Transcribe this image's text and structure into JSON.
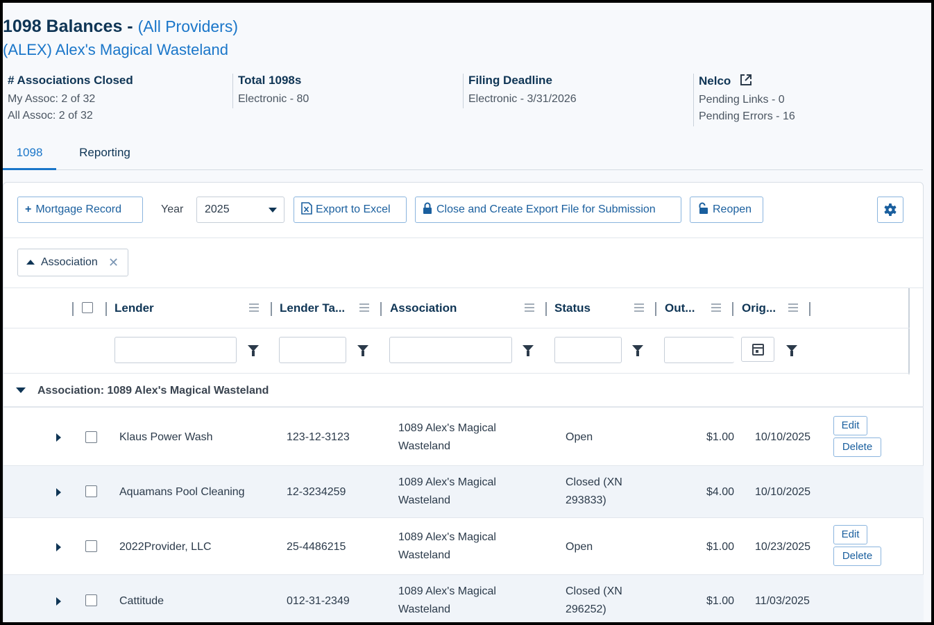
{
  "header": {
    "title": "1098 Balances -",
    "provider_link": "(All Providers)",
    "association_link": "(ALEX) Alex's Magical Wasteland"
  },
  "stats": {
    "closed": {
      "title": "# Associations Closed",
      "line1": "My Assoc: 2 of 32",
      "line2": "All Assoc: 2 of 32"
    },
    "total": {
      "title": "Total 1098s",
      "line1": "Electronic - 80"
    },
    "deadline": {
      "title": "Filing Deadline",
      "line1": "Electronic - 3/31/2026"
    },
    "nelco": {
      "title": "Nelco",
      "icon": "external-link-icon",
      "line1": "Pending Links - 0",
      "line2": "Pending Errors - 16"
    }
  },
  "tabs": [
    {
      "label": "1098",
      "active": true
    },
    {
      "label": "Reporting",
      "active": false
    }
  ],
  "toolbar": {
    "add_label": "Mortgage Record",
    "year_label": "Year",
    "year_value": "2025",
    "export_label": "Export to Excel",
    "close_label": "Close and Create Export File for Submission",
    "reopen_label": "Reopen",
    "settings_icon": "gear-icon"
  },
  "grouping": {
    "chip_label": "Association"
  },
  "columns": [
    {
      "label": "Lender"
    },
    {
      "label": "Lender Ta..."
    },
    {
      "label": "Association"
    },
    {
      "label": "Status"
    },
    {
      "label": "Out..."
    },
    {
      "label": "Orig..."
    }
  ],
  "group_header": "Association: 1089 Alex's Magical Wasteland",
  "rows": [
    {
      "lender": "Klaus Power Wash",
      "tax_id": "123-12-3123",
      "assoc_l1": "1089 Alex's Magical",
      "assoc_l2": "Wasteland",
      "status_l1": "Open",
      "status_l2": "",
      "outstanding": "$1.00",
      "orig_date": "10/10/2025",
      "edit": "Edit",
      "delete": "Delete"
    },
    {
      "lender": "Aquamans Pool Cleaning",
      "tax_id": "12-3234259",
      "assoc_l1": "1089 Alex's Magical",
      "assoc_l2": "Wasteland",
      "status_l1": "Closed (XN",
      "status_l2": "293833)",
      "outstanding": "$4.00",
      "orig_date": "10/10/2025"
    },
    {
      "lender": "2022Provider, LLC",
      "tax_id": "25-4486215",
      "assoc_l1": "1089 Alex's Magical",
      "assoc_l2": "Wasteland",
      "status_l1": "Open",
      "status_l2": "",
      "outstanding": "$1.00",
      "orig_date": "10/23/2025",
      "edit": "Edit",
      "delete": "Delete"
    },
    {
      "lender": "Cattitude",
      "tax_id": "012-31-2349",
      "assoc_l1": "1089 Alex's Magical",
      "assoc_l2": "Wasteland",
      "status_l1": "Closed (XN",
      "status_l2": "296252)",
      "outstanding": "$1.00",
      "orig_date": "11/03/2025"
    }
  ],
  "colors": {
    "accent": "#1a76c9",
    "navy": "#0f3555",
    "alt_row": "#f0f4f9"
  }
}
